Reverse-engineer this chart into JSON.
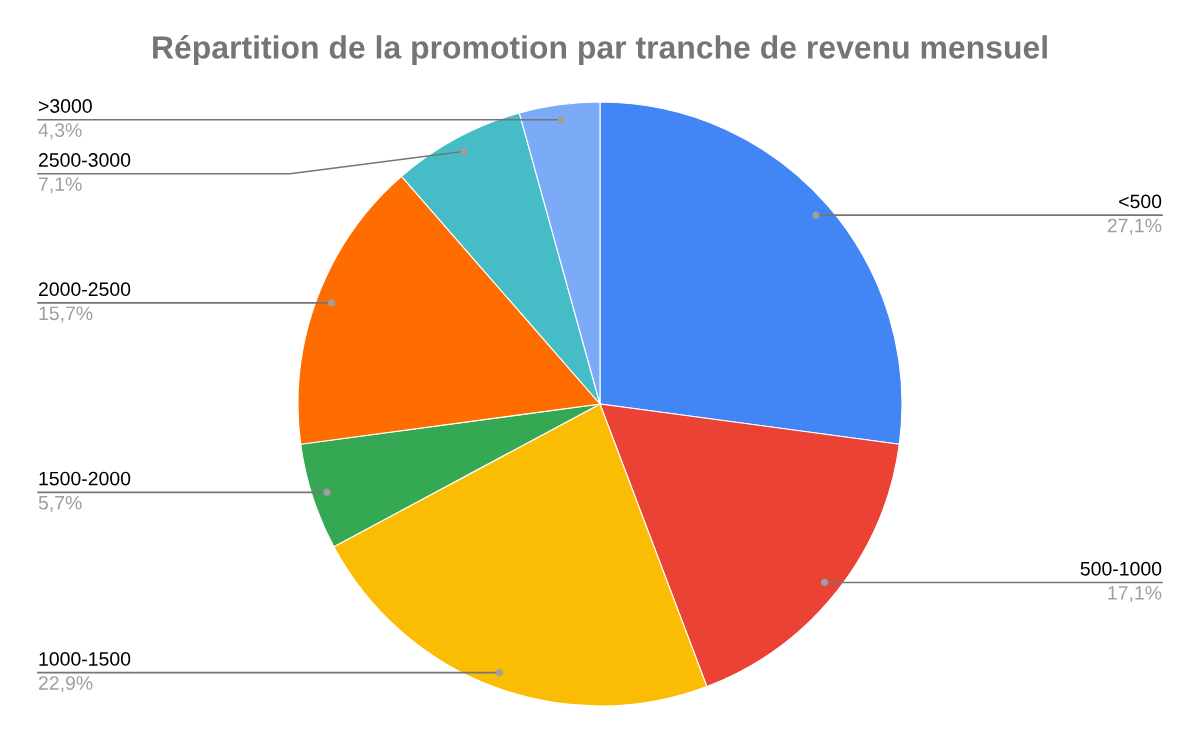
{
  "chart_data": {
    "type": "pie",
    "title": "Répartition de la promotion par tranche de revenu mensuel",
    "categories": [
      "<500",
      "500-1000",
      "1000-1500",
      "1500-2000",
      "2000-2500",
      "2500-3000",
      ">3000"
    ],
    "values": [
      27.1,
      17.1,
      22.9,
      5.7,
      15.7,
      7.1,
      4.3
    ],
    "colors": [
      "#4285f4",
      "#ea4335",
      "#fbbc04",
      "#34a853",
      "#ff6d01",
      "#46bdc6",
      "#7baaf7"
    ],
    "value_labels": [
      "27,1%",
      "17,1%",
      "22,9%",
      "5,7%",
      "15,7%",
      "7,1%",
      "4,3%"
    ]
  }
}
